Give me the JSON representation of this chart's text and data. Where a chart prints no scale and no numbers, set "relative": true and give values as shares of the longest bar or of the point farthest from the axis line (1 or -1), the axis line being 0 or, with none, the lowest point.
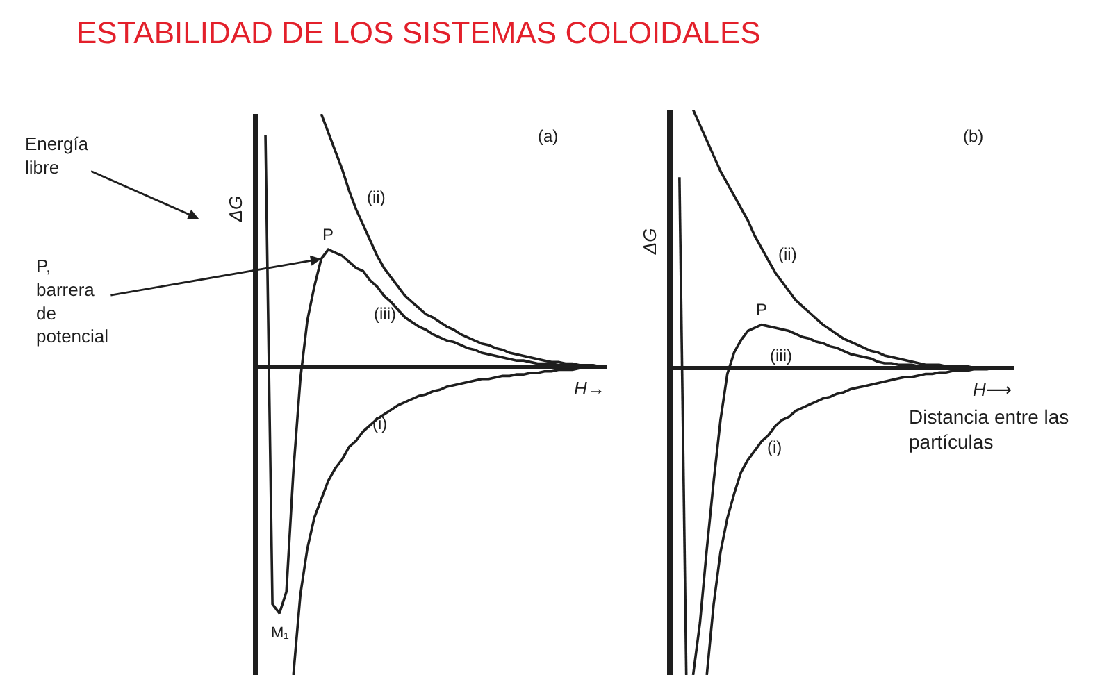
{
  "chart_data": [
    {
      "type": "line",
      "title": "ESTABILIDAD DE LOS SISTEMAS COLOIDALES",
      "xlabel": "H→",
      "ylabel": "ΔG",
      "relative": true,
      "categories": [
        null,
        null,
        null,
        null,
        null,
        null,
        null,
        null,
        null,
        null,
        null,
        null,
        null,
        null,
        null,
        null,
        null,
        null,
        null,
        null,
        null,
        null,
        null,
        null,
        null,
        null,
        null,
        null,
        null,
        null,
        null,
        null,
        null,
        null,
        null,
        null,
        null,
        null,
        null,
        null,
        null,
        null,
        null,
        null,
        null,
        null,
        null,
        null,
        null,
        null,
        null
      ],
      "annotations": [
        "(a)",
        "Energía\nlibre",
        "P,\nbarrera\nde\npotencial",
        {
          "text": "P",
          "y": 0.38
        },
        {
          "text": "M₁",
          "y": -0.8
        }
      ],
      "series": [
        {
          "name": "(i)",
          "color": "#1e1e1e",
          "values": [
            null,
            null,
            null,
            null,
            null,
            -1,
            -0.74,
            -0.59,
            -0.49,
            -0.43,
            -0.37,
            -0.33,
            -0.3,
            -0.26,
            -0.24,
            -0.21,
            -0.19,
            -0.17,
            -0.155,
            -0.14,
            -0.125,
            -0.115,
            -0.105,
            -0.095,
            -0.09,
            -0.08,
            -0.075,
            -0.065,
            -0.06,
            -0.055,
            -0.05,
            -0.045,
            -0.04,
            -0.04,
            -0.035,
            -0.03,
            -0.03,
            -0.025,
            -0.025,
            -0.02,
            -0.02,
            -0.015,
            -0.015,
            -0.01,
            -0.01,
            -0.01,
            -0.005,
            -0.005,
            -0.005,
            0,
            0
          ]
        },
        {
          "name": "(ii)",
          "color": "#1e1e1e",
          "values": [
            null,
            null,
            null,
            null,
            null,
            null,
            null,
            null,
            null,
            0.82,
            0.76,
            0.7,
            0.64,
            0.57,
            0.51,
            0.46,
            0.41,
            0.36,
            0.32,
            0.29,
            0.26,
            0.23,
            0.21,
            0.19,
            0.17,
            0.16,
            0.145,
            0.13,
            0.12,
            0.105,
            0.095,
            0.085,
            0.075,
            0.07,
            0.06,
            0.055,
            0.045,
            0.04,
            0.035,
            0.03,
            0.025,
            0.02,
            0.015,
            0.015,
            0.01,
            0.01,
            0.005,
            0.005,
            0.005,
            0,
            0
          ]
        },
        {
          "name": "(iii)",
          "color": "#1e1e1e",
          "values": [
            null,
            0.75,
            -0.77,
            -0.8,
            -0.73,
            -0.34,
            -0.04,
            0.15,
            0.26,
            0.35,
            0.38,
            0.37,
            0.36,
            0.34,
            0.32,
            0.31,
            0.28,
            0.26,
            0.23,
            0.21,
            0.185,
            0.16,
            0.145,
            0.13,
            0.12,
            0.105,
            0.095,
            0.085,
            0.08,
            0.07,
            0.06,
            0.055,
            0.045,
            0.04,
            0.035,
            0.03,
            0.025,
            0.02,
            0.02,
            0.015,
            0.01,
            0.01,
            0.01,
            0.005,
            0.005,
            0.005,
            0,
            0,
            0,
            0,
            0
          ]
        }
      ]
    },
    {
      "type": "line",
      "xlabel": "H⟶",
      "ylabel": "ΔG",
      "relative": true,
      "categories": [
        null,
        null,
        null,
        null,
        null,
        null,
        null,
        null,
        null,
        null,
        null,
        null,
        null,
        null,
        null,
        null,
        null,
        null,
        null,
        null,
        null,
        null,
        null,
        null,
        null,
        null,
        null,
        null,
        null,
        null,
        null,
        null,
        null,
        null,
        null,
        null,
        null,
        null,
        null,
        null,
        null,
        null,
        null,
        null,
        null,
        null,
        null,
        null,
        null,
        null,
        null
      ],
      "annotations": [
        "(b)",
        {
          "text": "P",
          "y": 0.14
        },
        "Distancia entre las\npartículas"
      ],
      "series": [
        {
          "name": "(i)",
          "color": "#1e1e1e",
          "values": [
            null,
            null,
            null,
            null,
            null,
            -1,
            -0.77,
            -0.6,
            -0.49,
            -0.41,
            -0.34,
            -0.3,
            -0.27,
            -0.24,
            -0.22,
            -0.19,
            -0.17,
            -0.16,
            -0.14,
            -0.13,
            -0.12,
            -0.11,
            -0.1,
            -0.095,
            -0.085,
            -0.08,
            -0.07,
            -0.065,
            -0.06,
            -0.055,
            -0.05,
            -0.045,
            -0.04,
            -0.035,
            -0.03,
            -0.03,
            -0.025,
            -0.02,
            -0.02,
            -0.015,
            -0.015,
            -0.01,
            -0.01,
            -0.01,
            -0.005,
            -0.005,
            -0.005,
            0,
            0,
            0,
            0
          ]
        },
        {
          "name": "(ii)",
          "color": "#1e1e1e",
          "values": [
            null,
            null,
            null,
            0.84,
            0.79,
            0.74,
            0.69,
            0.64,
            0.6,
            0.56,
            0.52,
            0.48,
            0.43,
            0.39,
            0.35,
            0.31,
            0.28,
            0.25,
            0.22,
            0.2,
            0.18,
            0.16,
            0.14,
            0.125,
            0.11,
            0.095,
            0.085,
            0.075,
            0.065,
            0.055,
            0.05,
            0.04,
            0.035,
            0.03,
            0.025,
            0.02,
            0.015,
            0.01,
            0.01,
            0.01,
            0.005,
            0.005,
            0.005,
            0.005,
            0,
            0,
            0,
            0,
            0,
            0,
            0
          ]
        },
        {
          "name": "(iii)",
          "color": "#1e1e1e",
          "values": [
            null,
            null,
            null,
            -1,
            -0.83,
            -0.59,
            -0.37,
            -0.17,
            -0.02,
            0.05,
            0.09,
            0.12,
            0.13,
            0.14,
            0.135,
            0.13,
            0.125,
            0.12,
            0.11,
            0.1,
            0.095,
            0.085,
            0.08,
            0.07,
            0.065,
            0.055,
            0.045,
            0.04,
            0.035,
            0.03,
            0.02,
            0.015,
            0.015,
            0.01,
            0.01,
            0.01,
            0.005,
            0.005,
            0.005,
            0,
            0,
            0,
            0,
            0,
            0,
            0,
            0,
            0,
            0,
            0,
            0
          ]
        },
        {
          "color": "#1e1e1e",
          "values": [
            null,
            0.62,
            -1,
            null,
            null,
            null,
            null,
            null,
            null,
            null,
            null,
            null,
            null,
            null,
            null,
            null,
            null,
            null,
            null,
            null,
            null,
            null,
            null,
            null,
            null,
            null,
            null,
            null,
            null,
            null,
            null,
            null,
            null,
            null,
            null,
            null,
            null,
            null,
            null,
            null,
            null,
            null,
            null,
            null,
            null,
            null,
            null,
            null,
            null,
            null,
            null
          ]
        }
      ]
    }
  ]
}
